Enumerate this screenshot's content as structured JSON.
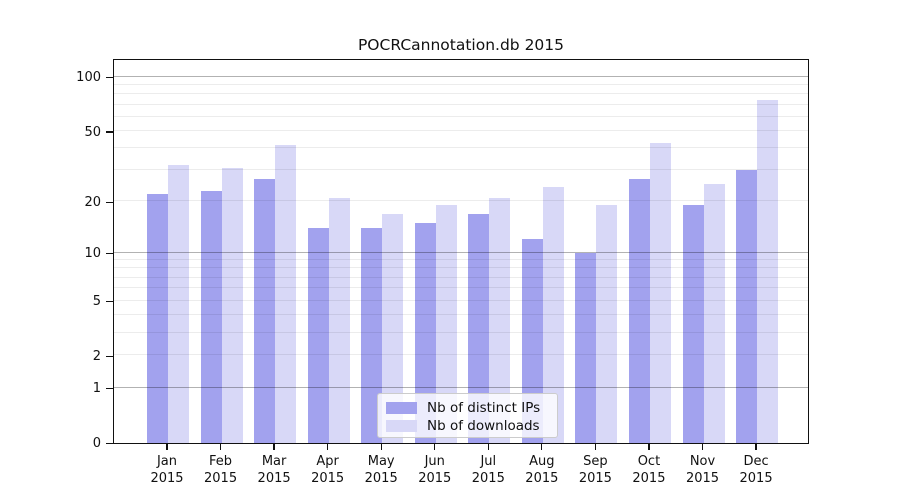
{
  "chart_data": {
    "type": "bar",
    "title": "POCRCannotation.db 2015",
    "categories": [
      "Jan",
      "Feb",
      "Mar",
      "Apr",
      "May",
      "Jun",
      "Jul",
      "Aug",
      "Sep",
      "Oct",
      "Nov",
      "Dec"
    ],
    "x_label_second_line": "2015",
    "series": [
      {
        "name": "Nb of distinct IPs",
        "color": "#a2a2ee",
        "values": [
          22,
          23,
          27,
          14,
          14,
          15,
          17,
          12,
          10,
          27,
          19,
          30
        ]
      },
      {
        "name": "Nb of downloads",
        "color": "#d8d8f7",
        "values": [
          32,
          31,
          42,
          21,
          17,
          19,
          21,
          24,
          19,
          43,
          25,
          74
        ]
      }
    ],
    "y_axis": {
      "scale": "log1p",
      "ticks": [
        0,
        1,
        2,
        5,
        10,
        20,
        50,
        100
      ],
      "major_gridlines": [
        1,
        10,
        100
      ],
      "minor_gridlines": [
        2,
        3,
        4,
        5,
        6,
        7,
        8,
        9,
        20,
        30,
        40,
        50,
        60,
        70,
        80,
        90
      ],
      "range_max": 127
    },
    "legend": {
      "position": "lower center"
    },
    "grid": "on"
  },
  "colors": {
    "grid_major": "#b3b3b3",
    "grid_minor": "#ebebeb",
    "spine": "#111111",
    "text": "#111111",
    "legend_border": "#cccccc"
  }
}
